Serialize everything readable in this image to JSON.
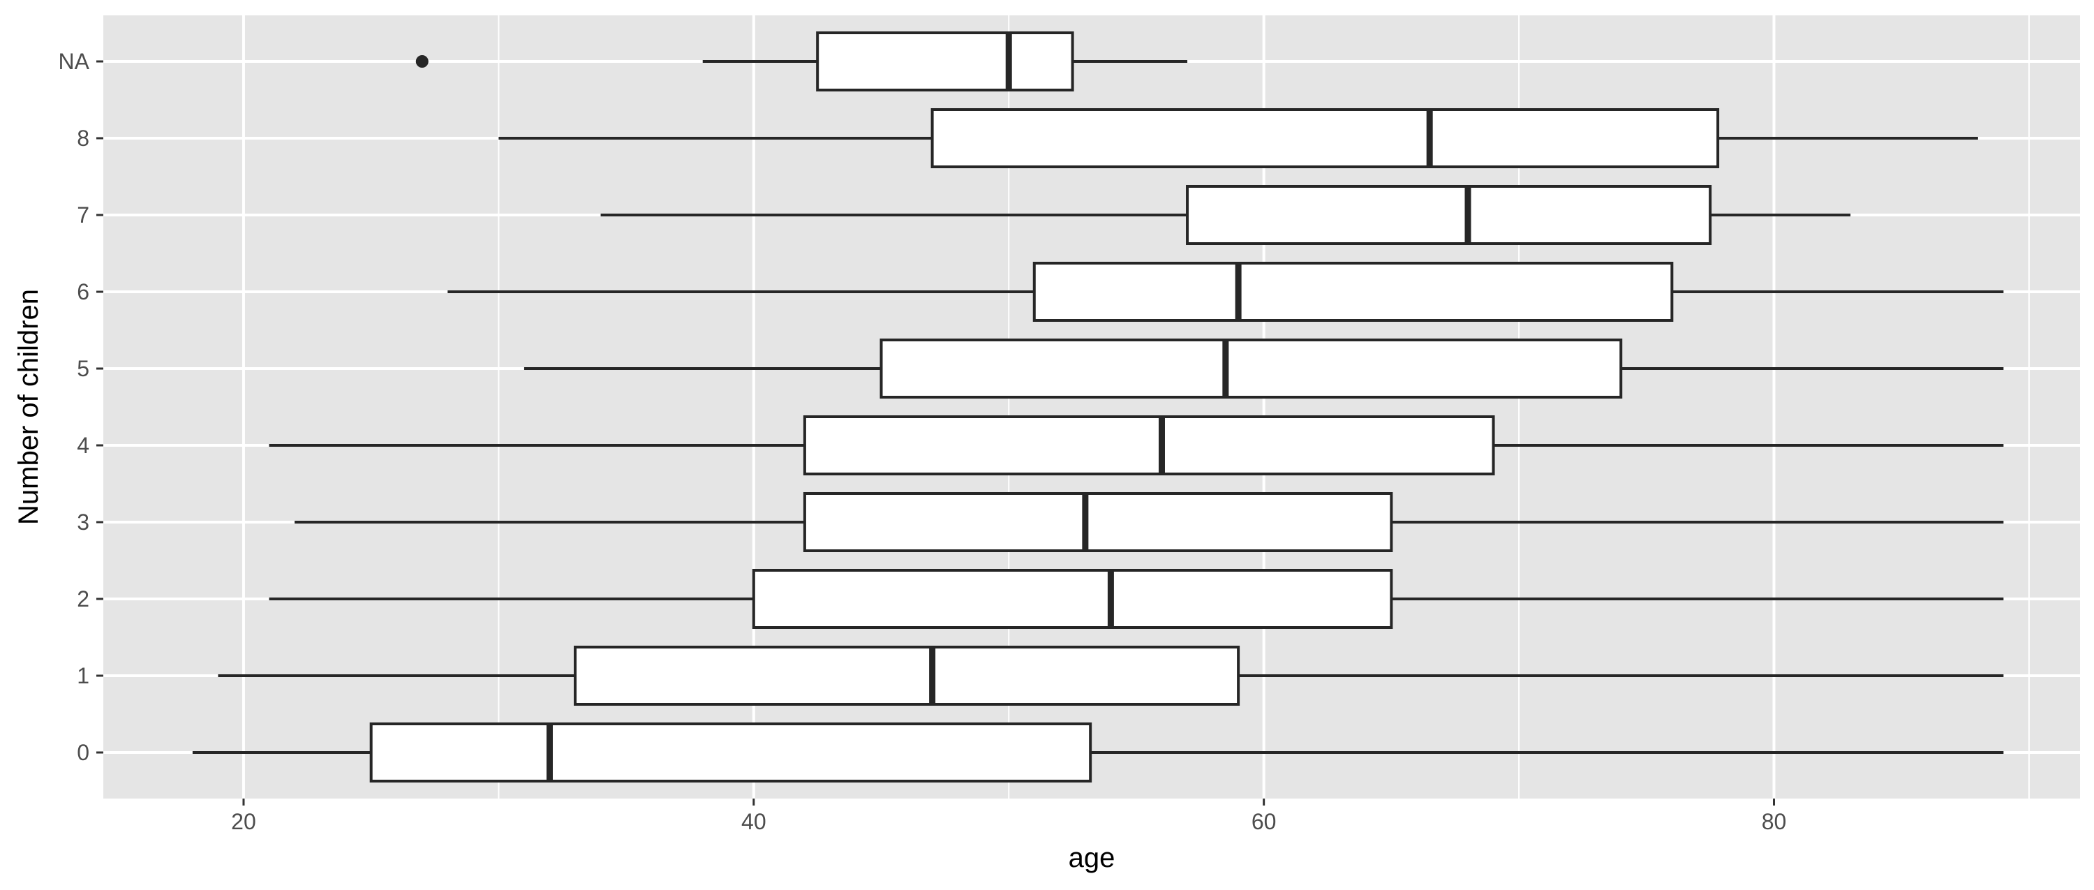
{
  "chart_data": {
    "type": "boxplot",
    "orientation": "horizontal",
    "xlabel": "age",
    "ylabel": "Number of children",
    "xlim": [
      14.5,
      92
    ],
    "x_ticks": [
      20,
      40,
      60,
      80
    ],
    "x_minor_ticks": [
      30,
      50,
      70,
      90
    ],
    "grid": true,
    "categories": [
      "0",
      "1",
      "2",
      "3",
      "4",
      "5",
      "6",
      "7",
      "8",
      "NA"
    ],
    "boxes": [
      {
        "category": "0",
        "whisker_low": 18,
        "q1": 25,
        "median": 32,
        "q3": 53.2,
        "whisker_high": 89,
        "outliers": []
      },
      {
        "category": "1",
        "whisker_low": 19,
        "q1": 33,
        "median": 47,
        "q3": 59,
        "whisker_high": 89,
        "outliers": []
      },
      {
        "category": "2",
        "whisker_low": 21,
        "q1": 40,
        "median": 54,
        "q3": 65,
        "whisker_high": 89,
        "outliers": []
      },
      {
        "category": "3",
        "whisker_low": 22,
        "q1": 42,
        "median": 53,
        "q3": 65,
        "whisker_high": 89,
        "outliers": []
      },
      {
        "category": "4",
        "whisker_low": 21,
        "q1": 42,
        "median": 56,
        "q3": 69,
        "whisker_high": 89,
        "outliers": []
      },
      {
        "category": "5",
        "whisker_low": 31,
        "q1": 45,
        "median": 58.5,
        "q3": 74,
        "whisker_high": 89,
        "outliers": []
      },
      {
        "category": "6",
        "whisker_low": 28,
        "q1": 51,
        "median": 59,
        "q3": 76,
        "whisker_high": 89,
        "outliers": []
      },
      {
        "category": "7",
        "whisker_low": 34,
        "q1": 57,
        "median": 68,
        "q3": 77.5,
        "whisker_high": 83,
        "outliers": []
      },
      {
        "category": "8",
        "whisker_low": 30,
        "q1": 47,
        "median": 66.5,
        "q3": 77.8,
        "whisker_high": 88,
        "outliers": []
      },
      {
        "category": "NA",
        "whisker_low": 38,
        "q1": 42.5,
        "median": 50,
        "q3": 52.5,
        "whisker_high": 57,
        "outliers": [
          27
        ]
      }
    ],
    "colors": {
      "panel_background": "#e5e5e5",
      "grid_line": "#ffffff",
      "box_fill": "#ffffff",
      "box_stroke": "#262626",
      "tick_mark": "#333333"
    }
  }
}
